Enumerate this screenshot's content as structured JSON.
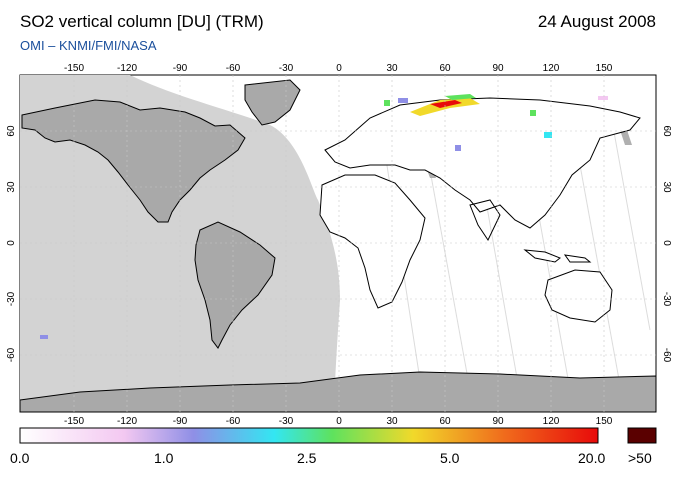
{
  "header": {
    "title": "SO2 vertical column [DU] (TRM)",
    "date": "24 August 2008",
    "credit": "OMI  –  KNMI/FMI/NASA"
  },
  "map": {
    "lon_ticks": [
      "-150",
      "-120",
      "-90",
      "-60",
      "-30",
      "0",
      "30",
      "60",
      "90",
      "120",
      "150"
    ],
    "lat_ticks": [
      "60",
      "30",
      "0",
      "-30",
      "-60"
    ],
    "ocean_color": "#ffffff",
    "night_region_color": "#d3d3d3",
    "land_in_night_color": "#a9a9a9",
    "coastline_color": "#000000"
  },
  "colorbar": {
    "labels": [
      "0.0",
      "1.0",
      "2.5",
      "5.0",
      "20.0",
      ">50"
    ],
    "colors": [
      "#ffffff",
      "#f3c8f1",
      "#8f8fe6",
      "#33e6f2",
      "#5ee25e",
      "#f1d92a",
      "#f06a1c",
      "#e80a0a",
      "#5a0000"
    ]
  }
}
